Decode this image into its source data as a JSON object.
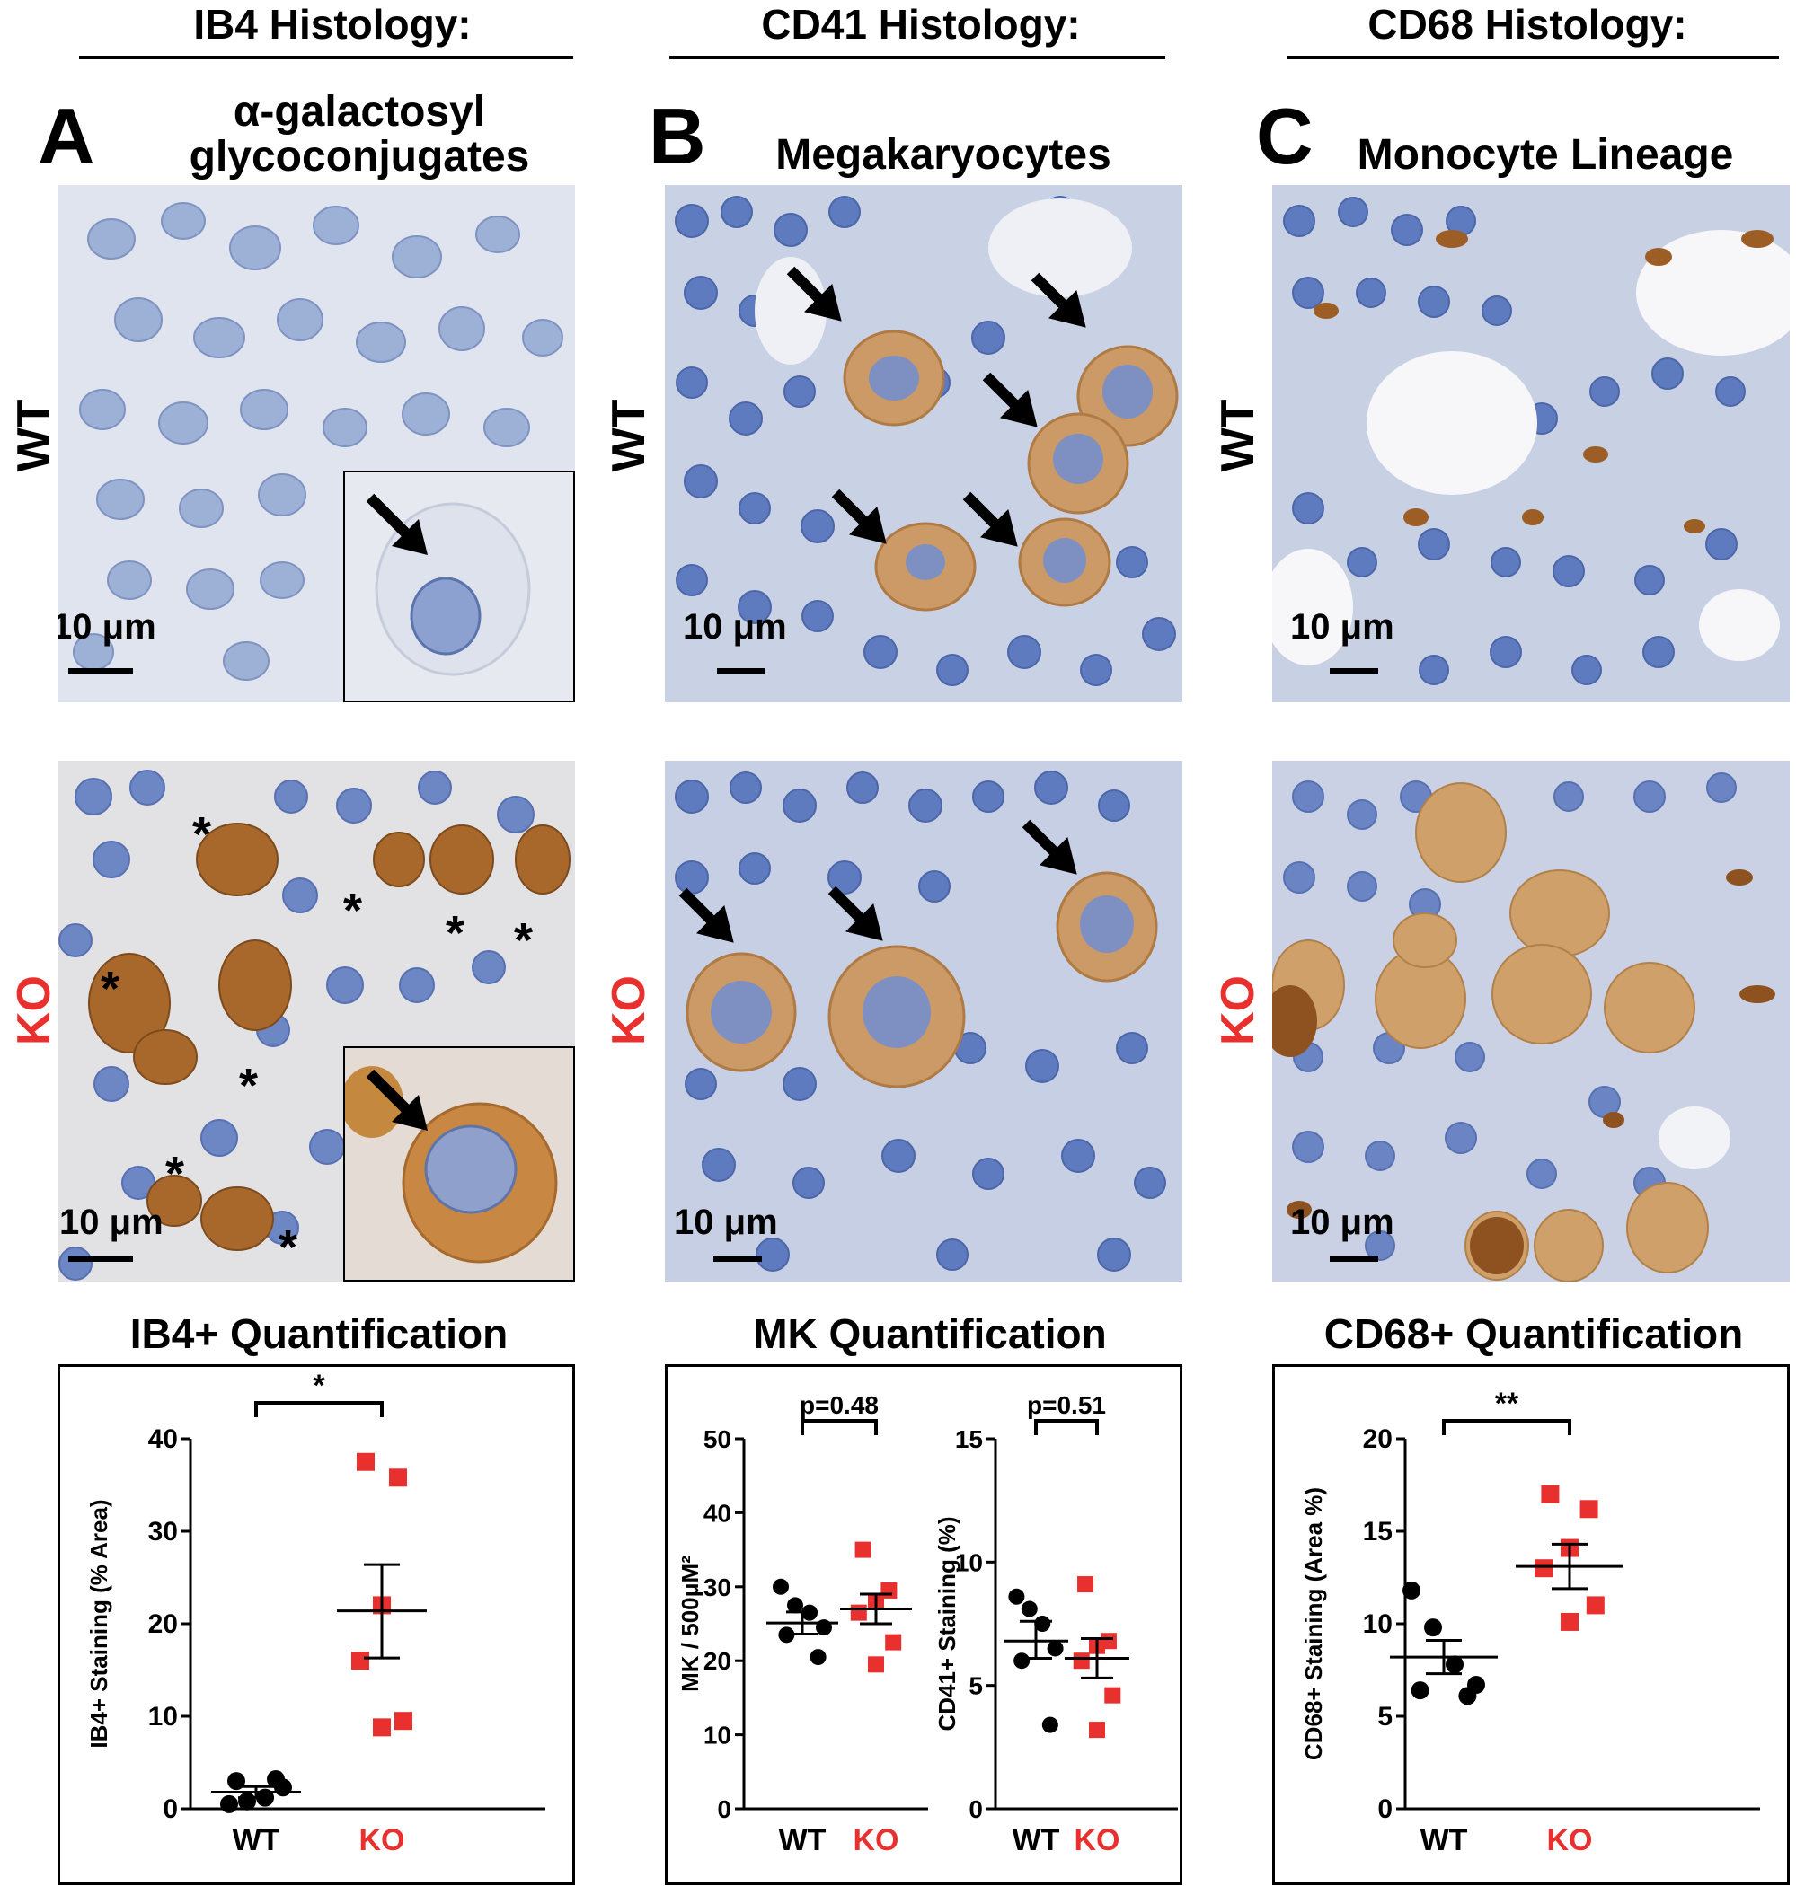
{
  "columns": [
    {
      "header": "IB4 Histology:",
      "letter": "A",
      "subtitle_line1": "α-galactosyl",
      "subtitle_line2": "glycoconjugates"
    },
    {
      "header": "CD41 Histology:",
      "letter": "B",
      "subtitle_line1": "Megakaryocytes",
      "subtitle_line2": ""
    },
    {
      "header": "CD68 Histology:",
      "letter": "C",
      "subtitle_line1": "Monocyte Lineage",
      "subtitle_line2": ""
    }
  ],
  "row_labels": {
    "wt": "WT",
    "ko": "KO"
  },
  "scale_label": "10 μm",
  "asterisk": "*",
  "colors": {
    "wt_points": "#000000",
    "ko_points": "#e8312f",
    "ko_label": "#e8312f",
    "tissue_blue": "#8fa8d6",
    "stain_brown": "#b87a3c"
  },
  "quant_titles": [
    "IB4+ Quantification",
    "MK Quantification",
    "CD68+ Quantification"
  ],
  "chart_data": [
    {
      "type": "scatter",
      "ylabel": "IB4+ Staining (% Area)",
      "categories": [
        "WT",
        "KO"
      ],
      "ylim": [
        0,
        40
      ],
      "yticks": [
        0,
        10,
        20,
        30,
        40
      ],
      "significance": "*",
      "series": [
        {
          "name": "WT",
          "values": [
            0.5,
            0.8,
            1.2,
            2.3,
            3.0,
            3.2
          ],
          "mean": 1.8,
          "sem_low": 1.2,
          "sem_high": 2.4
        },
        {
          "name": "KO",
          "values": [
            37.5,
            35.8,
            22.0,
            16.0,
            9.5,
            8.8
          ],
          "mean": 21.4,
          "sem_low": 16.3,
          "sem_high": 26.4
        }
      ]
    },
    {
      "type": "scatter",
      "ylabel": "MK / 500μM²",
      "categories": [
        "WT",
        "KO"
      ],
      "ylim": [
        0,
        50
      ],
      "yticks": [
        0,
        10,
        20,
        30,
        40,
        50
      ],
      "significance": "p=0.48",
      "series": [
        {
          "name": "WT",
          "values": [
            30.0,
            27.5,
            26.5,
            24.5,
            23.5,
            20.5
          ],
          "mean": 25.1,
          "sem_low": 23.6,
          "sem_high": 26.6
        },
        {
          "name": "KO",
          "values": [
            35.0,
            29.5,
            28.0,
            26.5,
            22.5,
            19.5
          ],
          "mean": 27.0,
          "sem_low": 25.0,
          "sem_high": 29.0
        }
      ]
    },
    {
      "type": "scatter",
      "ylabel": "CD41+ Staining (%)",
      "categories": [
        "WT",
        "KO"
      ],
      "ylim": [
        0,
        15
      ],
      "yticks": [
        0,
        5,
        10,
        15
      ],
      "significance": "p=0.51",
      "series": [
        {
          "name": "WT",
          "values": [
            8.6,
            8.1,
            7.5,
            6.5,
            6.0,
            3.4
          ],
          "mean": 6.8,
          "sem_low": 6.1,
          "sem_high": 7.6
        },
        {
          "name": "KO",
          "values": [
            9.1,
            6.8,
            6.6,
            6.0,
            4.6,
            3.2
          ],
          "mean": 6.1,
          "sem_low": 5.3,
          "sem_high": 6.9
        }
      ]
    },
    {
      "type": "scatter",
      "ylabel": "CD68+ Staining (Area %)",
      "categories": [
        "WT",
        "KO"
      ],
      "ylim": [
        0,
        20
      ],
      "yticks": [
        0,
        5,
        10,
        15,
        20
      ],
      "significance": "**",
      "series": [
        {
          "name": "WT",
          "values": [
            11.8,
            9.8,
            7.8,
            6.7,
            6.4,
            6.1
          ],
          "mean": 8.2,
          "sem_low": 7.3,
          "sem_high": 9.1
        },
        {
          "name": "KO",
          "values": [
            17.0,
            16.2,
            14.1,
            13.0,
            11.0,
            10.1
          ],
          "mean": 13.1,
          "sem_low": 11.9,
          "sem_high": 14.3
        }
      ]
    }
  ]
}
